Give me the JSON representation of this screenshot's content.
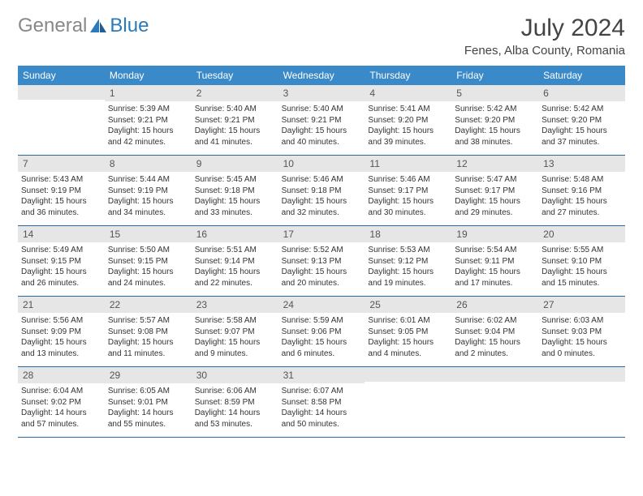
{
  "logo": {
    "gray": "General",
    "blue": "Blue"
  },
  "title": "July 2024",
  "location": "Fenes, Alba County, Romania",
  "colors": {
    "headerBar": "#3a89c9",
    "dayBand": "#e6e6e6",
    "weekBorder": "#2a6aa0",
    "logoBlue": "#2a7ab9",
    "logoGray": "#888888",
    "text": "#333333",
    "background": "#ffffff"
  },
  "weekdays": [
    "Sunday",
    "Monday",
    "Tuesday",
    "Wednesday",
    "Thursday",
    "Friday",
    "Saturday"
  ],
  "weeks": [
    [
      {
        "n": "",
        "sr": "",
        "ss": "",
        "dl": ""
      },
      {
        "n": "1",
        "sr": "5:39 AM",
        "ss": "9:21 PM",
        "dl": "15 hours and 42 minutes."
      },
      {
        "n": "2",
        "sr": "5:40 AM",
        "ss": "9:21 PM",
        "dl": "15 hours and 41 minutes."
      },
      {
        "n": "3",
        "sr": "5:40 AM",
        "ss": "9:21 PM",
        "dl": "15 hours and 40 minutes."
      },
      {
        "n": "4",
        "sr": "5:41 AM",
        "ss": "9:20 PM",
        "dl": "15 hours and 39 minutes."
      },
      {
        "n": "5",
        "sr": "5:42 AM",
        "ss": "9:20 PM",
        "dl": "15 hours and 38 minutes."
      },
      {
        "n": "6",
        "sr": "5:42 AM",
        "ss": "9:20 PM",
        "dl": "15 hours and 37 minutes."
      }
    ],
    [
      {
        "n": "7",
        "sr": "5:43 AM",
        "ss": "9:19 PM",
        "dl": "15 hours and 36 minutes."
      },
      {
        "n": "8",
        "sr": "5:44 AM",
        "ss": "9:19 PM",
        "dl": "15 hours and 34 minutes."
      },
      {
        "n": "9",
        "sr": "5:45 AM",
        "ss": "9:18 PM",
        "dl": "15 hours and 33 minutes."
      },
      {
        "n": "10",
        "sr": "5:46 AM",
        "ss": "9:18 PM",
        "dl": "15 hours and 32 minutes."
      },
      {
        "n": "11",
        "sr": "5:46 AM",
        "ss": "9:17 PM",
        "dl": "15 hours and 30 minutes."
      },
      {
        "n": "12",
        "sr": "5:47 AM",
        "ss": "9:17 PM",
        "dl": "15 hours and 29 minutes."
      },
      {
        "n": "13",
        "sr": "5:48 AM",
        "ss": "9:16 PM",
        "dl": "15 hours and 27 minutes."
      }
    ],
    [
      {
        "n": "14",
        "sr": "5:49 AM",
        "ss": "9:15 PM",
        "dl": "15 hours and 26 minutes."
      },
      {
        "n": "15",
        "sr": "5:50 AM",
        "ss": "9:15 PM",
        "dl": "15 hours and 24 minutes."
      },
      {
        "n": "16",
        "sr": "5:51 AM",
        "ss": "9:14 PM",
        "dl": "15 hours and 22 minutes."
      },
      {
        "n": "17",
        "sr": "5:52 AM",
        "ss": "9:13 PM",
        "dl": "15 hours and 20 minutes."
      },
      {
        "n": "18",
        "sr": "5:53 AM",
        "ss": "9:12 PM",
        "dl": "15 hours and 19 minutes."
      },
      {
        "n": "19",
        "sr": "5:54 AM",
        "ss": "9:11 PM",
        "dl": "15 hours and 17 minutes."
      },
      {
        "n": "20",
        "sr": "5:55 AM",
        "ss": "9:10 PM",
        "dl": "15 hours and 15 minutes."
      }
    ],
    [
      {
        "n": "21",
        "sr": "5:56 AM",
        "ss": "9:09 PM",
        "dl": "15 hours and 13 minutes."
      },
      {
        "n": "22",
        "sr": "5:57 AM",
        "ss": "9:08 PM",
        "dl": "15 hours and 11 minutes."
      },
      {
        "n": "23",
        "sr": "5:58 AM",
        "ss": "9:07 PM",
        "dl": "15 hours and 9 minutes."
      },
      {
        "n": "24",
        "sr": "5:59 AM",
        "ss": "9:06 PM",
        "dl": "15 hours and 6 minutes."
      },
      {
        "n": "25",
        "sr": "6:01 AM",
        "ss": "9:05 PM",
        "dl": "15 hours and 4 minutes."
      },
      {
        "n": "26",
        "sr": "6:02 AM",
        "ss": "9:04 PM",
        "dl": "15 hours and 2 minutes."
      },
      {
        "n": "27",
        "sr": "6:03 AM",
        "ss": "9:03 PM",
        "dl": "15 hours and 0 minutes."
      }
    ],
    [
      {
        "n": "28",
        "sr": "6:04 AM",
        "ss": "9:02 PM",
        "dl": "14 hours and 57 minutes."
      },
      {
        "n": "29",
        "sr": "6:05 AM",
        "ss": "9:01 PM",
        "dl": "14 hours and 55 minutes."
      },
      {
        "n": "30",
        "sr": "6:06 AM",
        "ss": "8:59 PM",
        "dl": "14 hours and 53 minutes."
      },
      {
        "n": "31",
        "sr": "6:07 AM",
        "ss": "8:58 PM",
        "dl": "14 hours and 50 minutes."
      },
      {
        "n": "",
        "sr": "",
        "ss": "",
        "dl": ""
      },
      {
        "n": "",
        "sr": "",
        "ss": "",
        "dl": ""
      },
      {
        "n": "",
        "sr": "",
        "ss": "",
        "dl": ""
      }
    ]
  ],
  "labels": {
    "sunrise": "Sunrise:",
    "sunset": "Sunset:",
    "daylight": "Daylight:"
  }
}
